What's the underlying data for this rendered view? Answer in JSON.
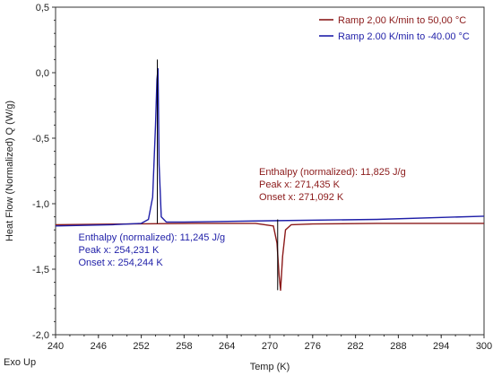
{
  "chart_data": {
    "type": "line",
    "xlabel": "Temp  (K)",
    "ylabel": "Heat Flow (Normalized) Q  (W/g)",
    "corner_label": "Exo Up",
    "xlim": [
      240,
      300
    ],
    "ylim": [
      -2.0,
      0.5
    ],
    "xticks": [
      "240",
      "246",
      "252",
      "258",
      "264",
      "270",
      "276",
      "282",
      "288",
      "294",
      "300"
    ],
    "yticks": [
      "0,5",
      "0,0",
      "-0,5",
      "-1,0",
      "-1,5",
      "-2,0"
    ],
    "series": [
      {
        "name": "Ramp 2,00 K/min to 50,00  °C",
        "color": "#8b1a1a",
        "x": [
          240,
          250,
          260,
          268,
          270.5,
          271.0,
          271.3,
          271.5,
          271.8,
          272.2,
          273,
          276,
          285,
          300
        ],
        "y": [
          -1.16,
          -1.155,
          -1.15,
          -1.15,
          -1.17,
          -1.3,
          -1.55,
          -1.66,
          -1.4,
          -1.2,
          -1.16,
          -1.155,
          -1.15,
          -1.15
        ]
      },
      {
        "name": "Ramp 2.00 K/min to -40.00   °C",
        "color": "#1f1fa8",
        "x": [
          240,
          248,
          252,
          253,
          253.6,
          254.0,
          254.2,
          254.35,
          254.5,
          254.8,
          255.5,
          258,
          270,
          285,
          300
        ],
        "y": [
          -1.17,
          -1.16,
          -1.15,
          -1.12,
          -0.95,
          -0.4,
          -0.05,
          0.03,
          -0.7,
          -1.1,
          -1.14,
          -1.14,
          -1.13,
          -1.12,
          -1.095
        ]
      }
    ],
    "annotations": [
      {
        "series": 0,
        "color": "#8b1a1a",
        "label_x": 268.5,
        "label_y": -0.78,
        "lines": [
          "Enthalpy (normalized): 11,825 J/g",
          "Peak x: 271,435 K",
          "Onset x: 271,092 K"
        ],
        "marker_x": 271.1,
        "marker_y_range": [
          -1.66,
          -1.12
        ]
      },
      {
        "series": 1,
        "color": "#1f1fa8",
        "label_x": 243.2,
        "label_y": -1.28,
        "lines": [
          "Enthalpy (normalized): 11,245 J/g",
          "Peak x: 254,231 K",
          "Onset x: 254,244 K"
        ],
        "marker_x": 254.25,
        "marker_y_range": [
          -1.15,
          0.1
        ]
      }
    ],
    "legend_position": "top-right",
    "grid": false
  }
}
